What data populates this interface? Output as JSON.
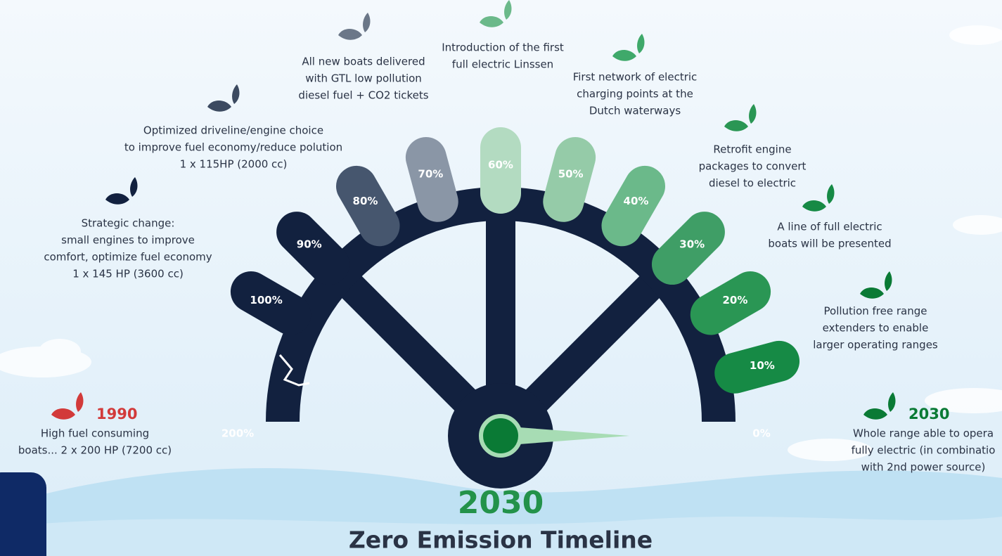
{
  "wheel": {
    "title": "2030",
    "subtitle": "Zero Emission Timeline",
    "spokes": [
      "200%",
      "100%",
      "90%",
      "80%",
      "70%",
      "60%",
      "50%",
      "40%",
      "30%",
      "20%",
      "10%",
      "0%"
    ]
  },
  "milestones": [
    {
      "year": "1990",
      "lines": [
        "High fuel consuming",
        "boats... 2 x 200 HP (7200 cc)"
      ]
    },
    {
      "lines": [
        "Strategic change:",
        "small engines to improve",
        "comfort, optimize fuel economy",
        "1 x 145 HP (3600 cc)"
      ]
    },
    {
      "lines": [
        "Optimized driveline/engine choice",
        "to improve fuel economy/reduce polution",
        "1 x 115HP (2000 cc)"
      ]
    },
    {
      "lines": [
        "All new boats delivered",
        "with GTL low pollution",
        "diesel fuel + CO2 tickets"
      ]
    },
    {
      "lines": [
        "Introduction of the first",
        "full electric Linssen"
      ]
    },
    {
      "lines": [
        "First network of electric",
        "charging points at the",
        "Dutch waterways"
      ]
    },
    {
      "lines": [
        "Retrofit engine",
        "packages to convert",
        "diesel to electric"
      ]
    },
    {
      "lines": [
        "A line of full electric",
        "boats will be presented"
      ]
    },
    {
      "lines": [
        "Pollution free range",
        "extenders to enable",
        "larger operating ranges"
      ]
    },
    {
      "year": "2030",
      "lines": [
        "Whole range able to opera",
        "fully electric (in combinatio",
        "with 2nd power source)"
      ]
    }
  ]
}
